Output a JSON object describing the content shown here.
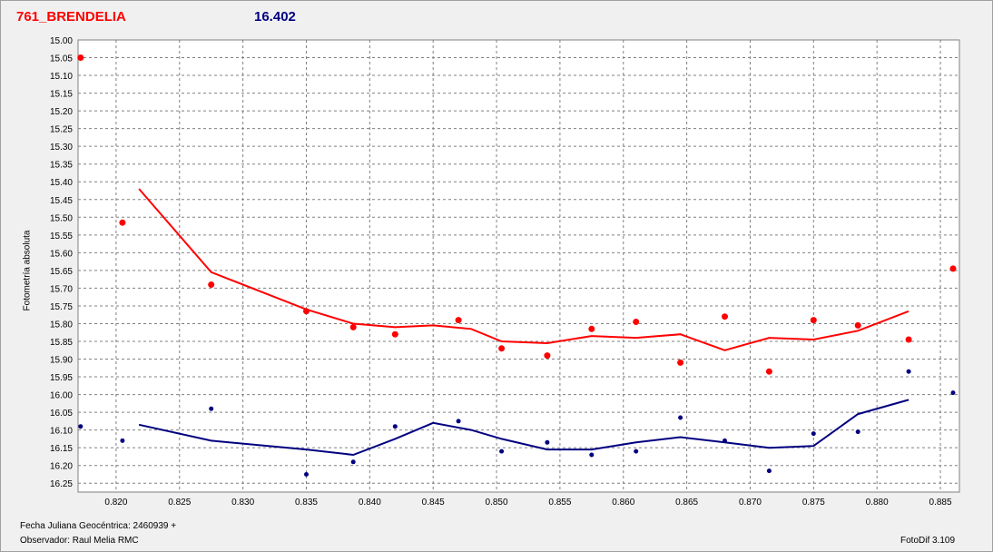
{
  "header": {
    "object_name": "761_BRENDELIA",
    "value": "16.402"
  },
  "footer": {
    "fecha": "Fecha Juliana Geocéntrica: 2460939 +",
    "observador": "Observador: Raul Melia RMC",
    "version": "FotoDif 3.109"
  },
  "colors": {
    "red_series": "#ff0000",
    "blue_series": "#000080",
    "grid": "#808080",
    "plot_bg": "#ffffff"
  },
  "chart_data": {
    "type": "scatter",
    "ylabel": "Fotometría absoluta",
    "xlabel": "",
    "xlim": [
      0.817,
      0.8865
    ],
    "ylim": [
      16.275,
      15.0
    ],
    "y_inverted": true,
    "grid": true,
    "x_ticks": [
      "0.820",
      "0.825",
      "0.830",
      "0.835",
      "0.840",
      "0.845",
      "0.850",
      "0.855",
      "0.860",
      "0.865",
      "0.870",
      "0.875",
      "0.880",
      "0.885"
    ],
    "y_ticks": [
      "15.00",
      "15.05",
      "15.10",
      "15.15",
      "15.20",
      "15.25",
      "15.30",
      "15.35",
      "15.40",
      "15.45",
      "15.50",
      "15.55",
      "15.60",
      "15.65",
      "15.70",
      "15.75",
      "15.80",
      "15.85",
      "15.90",
      "15.95",
      "16.00",
      "16.05",
      "16.10",
      "16.15",
      "16.20",
      "16.25"
    ],
    "series": [
      {
        "color": "#ff0000",
        "points": [
          [
            0.8172,
            15.05
          ],
          [
            0.8205,
            15.515
          ],
          [
            0.8275,
            15.69
          ],
          [
            0.835,
            15.765
          ],
          [
            0.8387,
            15.81
          ],
          [
            0.842,
            15.83
          ],
          [
            0.847,
            15.79
          ],
          [
            0.8504,
            15.87
          ],
          [
            0.854,
            15.89
          ],
          [
            0.8575,
            15.815
          ],
          [
            0.861,
            15.795
          ],
          [
            0.8645,
            15.91
          ],
          [
            0.868,
            15.78
          ],
          [
            0.8715,
            15.935
          ],
          [
            0.875,
            15.79
          ],
          [
            0.8785,
            15.805
          ],
          [
            0.8825,
            15.845
          ],
          [
            0.886,
            15.645
          ]
        ],
        "fit": [
          [
            0.8218,
            15.42
          ],
          [
            0.8275,
            15.655
          ],
          [
            0.835,
            15.76
          ],
          [
            0.8387,
            15.8
          ],
          [
            0.842,
            15.81
          ],
          [
            0.845,
            15.805
          ],
          [
            0.848,
            15.815
          ],
          [
            0.8504,
            15.85
          ],
          [
            0.854,
            15.855
          ],
          [
            0.8575,
            15.835
          ],
          [
            0.861,
            15.84
          ],
          [
            0.8645,
            15.83
          ],
          [
            0.868,
            15.875
          ],
          [
            0.8715,
            15.84
          ],
          [
            0.875,
            15.845
          ],
          [
            0.8785,
            15.82
          ],
          [
            0.8825,
            15.765
          ]
        ]
      },
      {
        "color": "#000080",
        "points": [
          [
            0.8172,
            16.09
          ],
          [
            0.8205,
            16.13
          ],
          [
            0.8275,
            16.04
          ],
          [
            0.835,
            16.225
          ],
          [
            0.8387,
            16.19
          ],
          [
            0.842,
            16.09
          ],
          [
            0.847,
            16.075
          ],
          [
            0.8504,
            16.16
          ],
          [
            0.854,
            16.135
          ],
          [
            0.8575,
            16.17
          ],
          [
            0.861,
            16.16
          ],
          [
            0.8645,
            16.065
          ],
          [
            0.868,
            16.13
          ],
          [
            0.8715,
            16.215
          ],
          [
            0.875,
            16.11
          ],
          [
            0.8785,
            16.105
          ],
          [
            0.8825,
            15.935
          ],
          [
            0.886,
            15.995
          ]
        ],
        "fit": [
          [
            0.8218,
            16.085
          ],
          [
            0.8275,
            16.13
          ],
          [
            0.835,
            16.155
          ],
          [
            0.8387,
            16.17
          ],
          [
            0.842,
            16.125
          ],
          [
            0.845,
            16.08
          ],
          [
            0.848,
            16.1
          ],
          [
            0.8504,
            16.125
          ],
          [
            0.854,
            16.155
          ],
          [
            0.8575,
            16.155
          ],
          [
            0.861,
            16.135
          ],
          [
            0.8645,
            16.12
          ],
          [
            0.868,
            16.135
          ],
          [
            0.8715,
            16.15
          ],
          [
            0.875,
            16.145
          ],
          [
            0.8785,
            16.055
          ],
          [
            0.8825,
            16.015
          ]
        ]
      }
    ]
  }
}
